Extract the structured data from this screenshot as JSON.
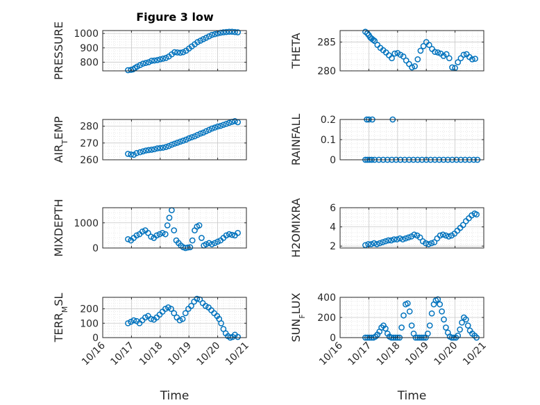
{
  "figure": {
    "title": "Figure 3 low"
  },
  "chart_data": [
    {
      "type": "scatter",
      "ylabel": "PRESSURE",
      "ylim": [
        740,
        1020
      ],
      "yticks": [
        800,
        900,
        1000
      ],
      "xlim": [
        16,
        21
      ],
      "grid": true,
      "show_xticklabels": false,
      "x": [
        16.88,
        16.98,
        17.05,
        17.12,
        17.2,
        17.3,
        17.4,
        17.5,
        17.6,
        17.7,
        17.8,
        17.9,
        18.0,
        18.1,
        18.2,
        18.3,
        18.4,
        18.5,
        18.6,
        18.7,
        18.8,
        18.9,
        19.0,
        19.1,
        19.2,
        19.3,
        19.4,
        19.5,
        19.6,
        19.7,
        19.8,
        19.9,
        20.0,
        20.1,
        20.2,
        20.3,
        20.4,
        20.5,
        20.6,
        20.7
      ],
      "values": [
        745,
        747,
        750,
        760,
        770,
        780,
        790,
        795,
        800,
        810,
        812,
        815,
        820,
        825,
        830,
        840,
        855,
        870,
        868,
        866,
        870,
        880,
        895,
        910,
        925,
        940,
        950,
        960,
        970,
        980,
        990,
        995,
        1000,
        1005,
        1008,
        1010,
        1012,
        1012,
        1010,
        1008
      ]
    },
    {
      "type": "scatter",
      "ylabel": "THETA",
      "ylim": [
        280,
        287
      ],
      "yticks": [
        280,
        285
      ],
      "xlim": [
        16,
        21
      ],
      "grid": true,
      "show_xticklabels": false,
      "x": [
        16.88,
        16.95,
        17.0,
        17.05,
        17.1,
        17.15,
        17.2,
        17.3,
        17.4,
        17.5,
        17.6,
        17.7,
        17.8,
        17.9,
        18.0,
        18.1,
        18.2,
        18.3,
        18.4,
        18.5,
        18.6,
        18.7,
        18.8,
        18.9,
        19.0,
        19.1,
        19.2,
        19.3,
        19.4,
        19.5,
        19.6,
        19.7,
        19.8,
        19.9,
        20.0,
        20.1,
        20.2,
        20.3,
        20.4,
        20.5,
        20.6,
        20.7
      ],
      "values": [
        286.8,
        286.5,
        286.2,
        285.8,
        285.6,
        285.4,
        285.2,
        284.5,
        284.0,
        283.6,
        283.2,
        282.7,
        282.2,
        283.0,
        283.1,
        282.8,
        282.5,
        281.8,
        281.2,
        280.6,
        280.8,
        282.0,
        283.5,
        284.3,
        285.0,
        284.5,
        283.8,
        283.3,
        283.2,
        283.0,
        282.6,
        282.9,
        282.2,
        280.6,
        280.5,
        281.5,
        282.2,
        282.8,
        282.9,
        282.4,
        282.0,
        282.1
      ]
    },
    {
      "type": "scatter",
      "ylabel": "AIR_TEMP",
      "ylim": [
        260,
        284
      ],
      "yticks": [
        260,
        270,
        280
      ],
      "xlim": [
        16,
        21
      ],
      "grid": true,
      "show_xticklabels": false,
      "x": [
        16.88,
        16.98,
        17.08,
        17.18,
        17.3,
        17.4,
        17.5,
        17.6,
        17.7,
        17.8,
        17.9,
        18.0,
        18.1,
        18.2,
        18.3,
        18.4,
        18.5,
        18.6,
        18.7,
        18.8,
        18.9,
        19.0,
        19.1,
        19.2,
        19.3,
        19.4,
        19.5,
        19.6,
        19.7,
        19.8,
        19.9,
        20.0,
        20.1,
        20.2,
        20.3,
        20.4,
        20.5,
        20.6,
        20.7
      ],
      "values": [
        263.5,
        263.2,
        263.0,
        264.0,
        264.5,
        265.0,
        265.5,
        265.8,
        266.0,
        266.3,
        266.8,
        267.0,
        267.2,
        267.6,
        268.2,
        269.0,
        269.6,
        270.2,
        270.8,
        271.4,
        272.0,
        272.8,
        273.4,
        274.0,
        274.8,
        275.6,
        276.2,
        277.0,
        277.8,
        278.6,
        279.2,
        279.8,
        280.2,
        280.8,
        281.4,
        282.0,
        282.6,
        283.0,
        282.4
      ]
    },
    {
      "type": "scatter",
      "ylabel": "RAINFALL",
      "ylim": [
        0,
        0.2
      ],
      "yticks": [
        0,
        0.1,
        0.2
      ],
      "xlim": [
        16,
        21
      ],
      "grid": true,
      "show_xticklabels": false,
      "x": [
        16.88,
        16.95,
        17.02,
        17.1,
        17.2,
        17.35,
        17.5,
        17.65,
        17.8,
        17.95,
        18.1,
        18.25,
        18.4,
        18.55,
        18.7,
        18.85,
        19.0,
        19.15,
        19.3,
        19.45,
        19.6,
        19.75,
        19.9,
        20.05,
        20.2,
        20.35,
        20.5,
        20.65,
        20.78,
        16.93,
        17.0,
        17.12,
        17.83
      ],
      "values": [
        0,
        0,
        0,
        0,
        0,
        0,
        0,
        0,
        0,
        0,
        0,
        0,
        0,
        0,
        0,
        0,
        0,
        0,
        0,
        0,
        0,
        0,
        0,
        0,
        0,
        0,
        0,
        0,
        0,
        0.2,
        0.2,
        0.2,
        0.2
      ]
    },
    {
      "type": "scatter",
      "ylabel": "MIXDEPTH",
      "ylim": [
        0,
        1600
      ],
      "yticks": [
        0,
        1000
      ],
      "xlim": [
        16,
        21
      ],
      "grid": true,
      "show_xticklabels": false,
      "x": [
        16.88,
        16.98,
        17.08,
        17.18,
        17.28,
        17.38,
        17.48,
        17.58,
        17.68,
        17.78,
        17.88,
        17.98,
        18.08,
        18.18,
        18.25,
        18.32,
        18.4,
        18.48,
        18.56,
        18.64,
        18.72,
        18.8,
        18.88,
        18.96,
        19.04,
        19.12,
        19.2,
        19.28,
        19.36,
        19.44,
        19.52,
        19.6,
        19.7,
        19.8,
        19.9,
        20.0,
        20.1,
        20.2,
        20.3,
        20.4,
        20.5,
        20.6,
        20.7
      ],
      "values": [
        350,
        300,
        400,
        500,
        550,
        650,
        700,
        600,
        450,
        400,
        500,
        550,
        600,
        550,
        900,
        1200,
        1500,
        700,
        300,
        200,
        100,
        30,
        0,
        20,
        30,
        300,
        700,
        850,
        900,
        400,
        100,
        150,
        200,
        150,
        200,
        250,
        300,
        400,
        500,
        550,
        520,
        500,
        600
      ]
    },
    {
      "type": "scatter",
      "ylabel": "H2OMIXRA",
      "ylim": [
        1.8,
        6
      ],
      "yticks": [
        2,
        4,
        6
      ],
      "xlim": [
        16,
        21
      ],
      "grid": true,
      "show_xticklabels": false,
      "x": [
        16.88,
        16.98,
        17.08,
        17.18,
        17.28,
        17.38,
        17.48,
        17.58,
        17.68,
        17.78,
        17.88,
        17.98,
        18.08,
        18.18,
        18.28,
        18.38,
        18.48,
        18.58,
        18.68,
        18.78,
        18.88,
        18.98,
        19.08,
        19.18,
        19.28,
        19.38,
        19.48,
        19.58,
        19.68,
        19.78,
        19.88,
        19.98,
        20.08,
        20.18,
        20.28,
        20.38,
        20.48,
        20.58,
        20.68,
        20.75
      ],
      "values": [
        2.1,
        2.2,
        2.2,
        2.3,
        2.2,
        2.3,
        2.4,
        2.5,
        2.6,
        2.6,
        2.7,
        2.7,
        2.8,
        2.7,
        2.8,
        2.9,
        3.0,
        3.2,
        3.1,
        2.9,
        2.5,
        2.3,
        2.2,
        2.3,
        2.4,
        2.8,
        3.1,
        3.2,
        3.1,
        3.0,
        3.1,
        3.3,
        3.6,
        3.9,
        4.2,
        4.6,
        4.9,
        5.2,
        5.4,
        5.3
      ]
    },
    {
      "type": "scatter",
      "ylabel": "TERR_MSL",
      "ylim": [
        0,
        280
      ],
      "yticks": [
        0,
        100,
        200
      ],
      "xlim": [
        16,
        21
      ],
      "grid": true,
      "show_xticklabels": true,
      "xticks": [
        16,
        17,
        18,
        19,
        20,
        21
      ],
      "xticklabels": [
        "10/16",
        "10/17",
        "10/18",
        "10/19",
        "10/20",
        "10/21"
      ],
      "xlabel": "Time",
      "x": [
        16.88,
        16.98,
        17.08,
        17.18,
        17.28,
        17.38,
        17.48,
        17.58,
        17.68,
        17.78,
        17.88,
        17.98,
        18.08,
        18.18,
        18.28,
        18.38,
        18.48,
        18.58,
        18.68,
        18.78,
        18.88,
        18.98,
        19.08,
        19.18,
        19.28,
        19.38,
        19.48,
        19.58,
        19.68,
        19.78,
        19.88,
        19.98,
        20.05,
        20.12,
        20.2,
        20.28,
        20.36,
        20.44,
        20.52,
        20.6,
        20.7
      ],
      "values": [
        100,
        110,
        120,
        115,
        100,
        120,
        140,
        150,
        130,
        125,
        140,
        160,
        180,
        200,
        210,
        200,
        170,
        140,
        120,
        130,
        170,
        200,
        220,
        250,
        270,
        265,
        240,
        220,
        210,
        190,
        170,
        150,
        130,
        100,
        60,
        30,
        10,
        0,
        5,
        20,
        5
      ]
    },
    {
      "type": "scatter",
      "ylabel": "SUN_FLUX",
      "ylim": [
        0,
        400
      ],
      "yticks": [
        0,
        200,
        400
      ],
      "xlim": [
        16,
        21
      ],
      "grid": true,
      "show_xticklabels": true,
      "xticks": [
        16,
        17,
        18,
        19,
        20,
        21
      ],
      "xticklabels": [
        "10/16",
        "10/17",
        "10/18",
        "10/19",
        "10/20",
        "10/21"
      ],
      "xlabel": "Time",
      "x": [
        16.88,
        16.95,
        17.02,
        17.09,
        17.16,
        17.23,
        17.3,
        17.37,
        17.44,
        17.51,
        17.58,
        17.65,
        17.72,
        17.79,
        17.86,
        17.93,
        18.0,
        18.07,
        18.14,
        18.21,
        18.28,
        18.35,
        18.42,
        18.49,
        18.56,
        18.63,
        18.7,
        18.77,
        18.84,
        18.91,
        18.98,
        19.05,
        19.12,
        19.19,
        19.26,
        19.33,
        19.4,
        19.47,
        19.54,
        19.61,
        19.68,
        19.75,
        19.82,
        19.89,
        19.96,
        20.03,
        20.1,
        20.17,
        20.24,
        20.31,
        20.38,
        20.45,
        20.52,
        20.6,
        20.68,
        20.75
      ],
      "values": [
        0,
        0,
        0,
        0,
        0,
        10,
        30,
        60,
        100,
        120,
        90,
        40,
        10,
        0,
        0,
        0,
        0,
        0,
        100,
        220,
        330,
        340,
        260,
        120,
        40,
        0,
        0,
        0,
        0,
        0,
        0,
        40,
        120,
        240,
        330,
        370,
        380,
        330,
        260,
        180,
        100,
        50,
        10,
        0,
        0,
        0,
        20,
        80,
        150,
        200,
        180,
        120,
        70,
        40,
        20,
        0
      ]
    }
  ]
}
